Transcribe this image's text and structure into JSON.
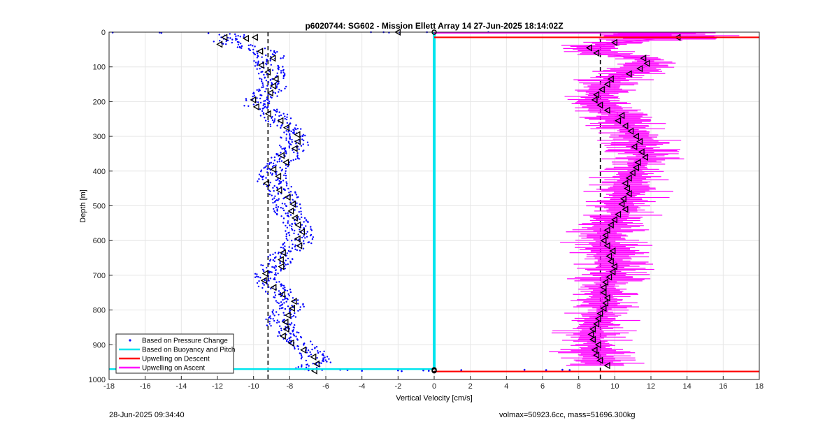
{
  "chart_data": {
    "type": "scatter",
    "title": "p6020744: SG602 - Mission Ellett Array 14 27-Jun-2025 18:14:02Z",
    "xlabel": "Vertical Velocity [cm/s]",
    "ylabel": "Depth [m]",
    "xlim": [
      -18,
      18
    ],
    "ylim": [
      0,
      1000
    ],
    "y_reversed": true,
    "grid": true,
    "xticks": [
      "-18",
      "-16",
      "-14",
      "-12",
      "-10",
      "-8",
      "-6",
      "-4",
      "-2",
      "0",
      "2",
      "4",
      "6",
      "8",
      "10",
      "12",
      "14",
      "16",
      "18"
    ],
    "yticks": [
      "0",
      "100",
      "200",
      "300",
      "400",
      "500",
      "600",
      "700",
      "800",
      "900",
      "1000"
    ],
    "legend_position": "bottom-left",
    "legend": [
      {
        "label": "Based on Pressure Change",
        "color": "#0000ff",
        "style": "dots"
      },
      {
        "label": "Based on Buoyancy and Pitch",
        "color": "#00e5ee",
        "style": "line"
      },
      {
        "label": "Upwelling on Descent",
        "color": "#ff0000",
        "style": "line"
      },
      {
        "label": "Upwelling on Ascent",
        "color": "#ff00ff",
        "style": "line"
      }
    ],
    "reference_lines": {
      "x": [
        -9.2,
        9.2
      ],
      "style": "dashed",
      "color": "#000000"
    },
    "descent_pressure_profile": {
      "color": "#0000ff",
      "depth": [
        10,
        30,
        50,
        70,
        90,
        110,
        130,
        150,
        170,
        190,
        210,
        230,
        250,
        270,
        290,
        310,
        330,
        350,
        370,
        390,
        410,
        430,
        450,
        470,
        490,
        510,
        530,
        550,
        570,
        590,
        610,
        630,
        650,
        670,
        690,
        710,
        730,
        750,
        770,
        790,
        810,
        830,
        850,
        870,
        890,
        910,
        930,
        950,
        970
      ],
      "velocity": [
        -11.2,
        -11.5,
        -9.5,
        -9.0,
        -9.3,
        -9.0,
        -9.1,
        -8.8,
        -9.2,
        -9.6,
        -9.8,
        -9.1,
        -8.6,
        -8.4,
        -7.9,
        -7.6,
        -7.8,
        -8.1,
        -8.3,
        -8.8,
        -8.9,
        -9.0,
        -8.6,
        -8.3,
        -8.2,
        -8.1,
        -7.9,
        -7.7,
        -7.5,
        -7.4,
        -7.6,
        -8.0,
        -8.5,
        -8.8,
        -9.1,
        -9.4,
        -9.0,
        -8.5,
        -8.1,
        -8.0,
        -8.3,
        -8.6,
        -8.4,
        -8.0,
        -7.5,
        -7.0,
        -6.7,
        -6.5,
        -7.0
      ]
    },
    "buoyancy_pitch_profile": {
      "color": "#00e5ee",
      "velocity": 0,
      "depth_range": [
        0,
        970
      ],
      "bottom_line_depth": 970,
      "bottom_line_x": [
        -18,
        0
      ]
    },
    "ascent_upwelling_profile": {
      "color": "#ff00ff",
      "depth": [
        15,
        30,
        45,
        60,
        75,
        90,
        105,
        120,
        135,
        150,
        165,
        180,
        195,
        210,
        225,
        240,
        255,
        270,
        285,
        300,
        315,
        330,
        345,
        360,
        375,
        390,
        405,
        420,
        435,
        450,
        465,
        480,
        495,
        510,
        525,
        540,
        555,
        570,
        585,
        600,
        615,
        630,
        645,
        660,
        675,
        690,
        705,
        720,
        735,
        750,
        765,
        780,
        795,
        810,
        825,
        840,
        855,
        870,
        885,
        900,
        915,
        930,
        945,
        960
      ],
      "velocity": [
        13.5,
        10.0,
        8.6,
        9.0,
        11.6,
        11.8,
        11.4,
        10.8,
        9.8,
        9.6,
        9.3,
        9.0,
        8.9,
        9.2,
        9.6,
        10.4,
        10.2,
        10.6,
        10.9,
        11.2,
        11.4,
        11.1,
        11.5,
        11.7,
        11.3,
        11.2,
        11.0,
        10.8,
        10.6,
        10.7,
        10.8,
        10.5,
        10.4,
        10.6,
        10.2,
        10.0,
        9.8,
        9.6,
        9.5,
        9.4,
        9.6,
        9.9,
        9.7,
        9.8,
        10.0,
        9.9,
        9.7,
        9.5,
        9.4,
        9.4,
        9.6,
        9.5,
        9.4,
        9.2,
        9.1,
        9.0,
        8.8,
        8.7,
        8.8,
        9.1,
        8.9,
        9.0,
        9.2,
        9.6
      ]
    },
    "descent_upwelling_lines": {
      "color": "#ff0000",
      "depths": [
        15,
        977
      ],
      "x": [
        0,
        18
      ]
    },
    "ascent_top_line": {
      "color": "#ff00ff",
      "depth": 0,
      "x": [
        0,
        13.0
      ]
    }
  },
  "footer": {
    "timestamp": "28-Jun-2025 09:34:40",
    "stats": "volmax=50923.6cc, mass=51696.300kg"
  }
}
